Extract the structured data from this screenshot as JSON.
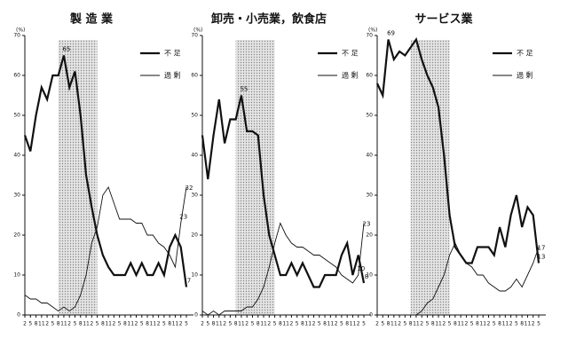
{
  "chart_data": [
    {
      "type": "line",
      "title": "製 造 業",
      "y_unit": "(%)",
      "categories": [
        "2",
        "5",
        "8",
        "11",
        "2",
        "5",
        "8",
        "11",
        "2",
        "5",
        "8",
        "11",
        "2",
        "5",
        "8",
        "11",
        "2",
        "5",
        "8",
        "11",
        "2",
        "5",
        "8",
        "11",
        "2",
        "5",
        "8",
        "11",
        "2",
        "5"
      ],
      "ylim": [
        0,
        70
      ],
      "yticks": [
        0,
        10,
        20,
        30,
        40,
        50,
        60,
        70
      ],
      "shade": [
        6,
        13
      ],
      "series": [
        {
          "name": "不 足",
          "width": 2.2,
          "color": "#111",
          "label_points": [
            7,
            29
          ],
          "values": [
            45,
            41,
            50,
            57,
            54,
            60,
            60,
            65,
            57,
            61,
            50,
            35,
            27,
            20,
            15,
            12,
            10,
            10,
            10,
            13,
            10,
            13,
            10,
            10,
            13,
            10,
            17,
            20,
            17,
            7
          ]
        },
        {
          "name": "過 剰",
          "width": 0.9,
          "color": "#111",
          "label_points": [
            28,
            29
          ],
          "values": [
            5,
            4,
            4,
            3,
            3,
            2,
            1,
            2,
            1,
            2,
            5,
            10,
            18,
            22,
            30,
            32,
            28,
            24,
            24,
            24,
            23,
            23,
            20,
            20,
            18,
            17,
            15,
            12,
            23,
            32
          ]
        }
      ]
    },
    {
      "type": "line",
      "title": "卸売・小売業，飲食店",
      "y_unit": "(%)",
      "categories": [
        "2",
        "5",
        "8",
        "11",
        "2",
        "5",
        "8",
        "11",
        "2",
        "5",
        "8",
        "11",
        "2",
        "5",
        "8",
        "11",
        "2",
        "5",
        "8",
        "11",
        "2",
        "5",
        "8",
        "11",
        "2",
        "5",
        "8",
        "11",
        "2",
        "5"
      ],
      "ylim": [
        0,
        70
      ],
      "yticks": [
        0,
        10,
        20,
        30,
        40,
        50,
        60,
        70
      ],
      "shade": [
        6,
        13
      ],
      "series": [
        {
          "name": "不 足",
          "width": 2.2,
          "color": "#111",
          "label_points": [
            7,
            29
          ],
          "values": [
            45,
            34,
            45,
            54,
            43,
            49,
            49,
            55,
            46,
            46,
            45,
            30,
            20,
            15,
            10,
            10,
            13,
            10,
            13,
            10,
            7,
            7,
            10,
            10,
            10,
            15,
            18,
            10,
            15,
            8
          ]
        },
        {
          "name": "過 剰",
          "width": 0.9,
          "color": "#111",
          "label_points": [
            28,
            29
          ],
          "values": [
            1,
            0,
            1,
            0,
            1,
            1,
            1,
            1,
            2,
            2,
            4,
            7,
            12,
            18,
            23,
            20,
            18,
            17,
            17,
            16,
            15,
            15,
            14,
            13,
            12,
            10,
            9,
            8,
            10,
            23
          ]
        }
      ]
    },
    {
      "type": "line",
      "title": "サービス業",
      "y_unit": "(%)",
      "categories": [
        "2",
        "5",
        "8",
        "11",
        "2",
        "5",
        "8",
        "11",
        "2",
        "5",
        "8",
        "11",
        "2",
        "5",
        "8",
        "11",
        "2",
        "5",
        "8",
        "11",
        "2",
        "5",
        "8",
        "11",
        "2",
        "5",
        "8",
        "11",
        "2",
        "5"
      ],
      "ylim": [
        0,
        70
      ],
      "yticks": [
        0,
        10,
        20,
        30,
        40,
        50,
        60,
        70
      ],
      "shade": [
        6,
        13
      ],
      "series": [
        {
          "name": "不 足",
          "width": 2.2,
          "color": "#111",
          "label_points": [
            2,
            29
          ],
          "values": [
            58,
            55,
            69,
            64,
            66,
            65,
            67,
            69,
            64,
            60,
            57,
            52,
            40,
            25,
            17,
            15,
            13,
            13,
            17,
            17,
            17,
            15,
            22,
            17,
            25,
            30,
            22,
            27,
            25,
            13
          ]
        },
        {
          "name": "過 剰",
          "width": 0.9,
          "color": "#111",
          "label_points": [
            29
          ],
          "values": [
            0,
            0,
            0,
            0,
            0,
            0,
            0,
            0,
            1,
            3,
            4,
            7,
            10,
            15,
            18,
            15,
            13,
            12,
            10,
            10,
            8,
            7,
            6,
            6,
            7,
            9,
            7,
            10,
            13,
            17
          ]
        }
      ]
    }
  ]
}
